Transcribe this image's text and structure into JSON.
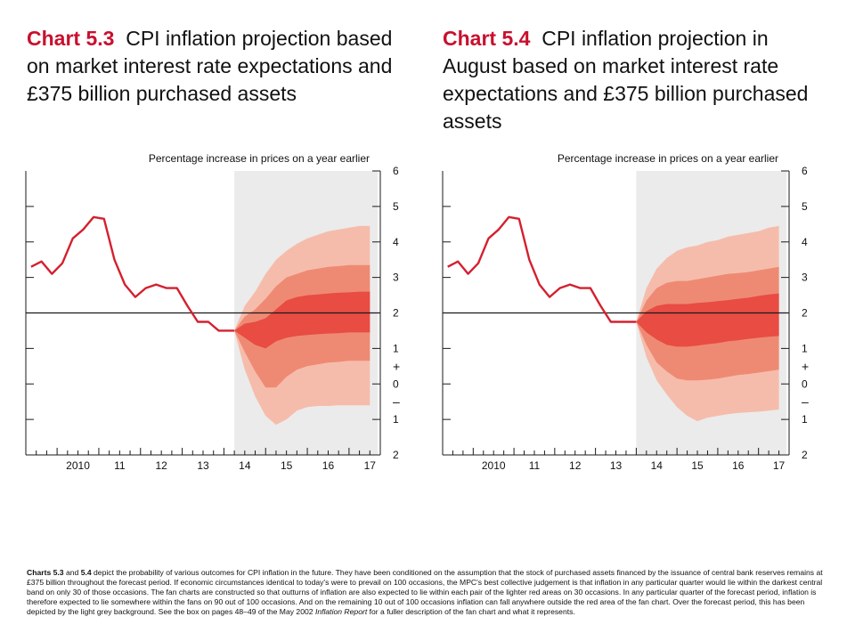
{
  "titles": {
    "left": {
      "number": "Chart 5.3",
      "text": "CPI inflation projection based on market interest rate expectations and £375 billion purchased assets"
    },
    "right": {
      "number": "Chart 5.4",
      "text": "CPI inflation projection in August based on market interest rate expectations and £375 billion purchased assets"
    }
  },
  "note": {
    "lead": "Charts 5.3",
    "and": " and ",
    "lead2": "5.4",
    "part1": " depict the probability of various outcomes for CPI inflation in the future.  They have been conditioned on the assumption that the stock of purchased assets financed by the issuance of central bank reserves remains at £375 billion throughout the forecast period.  If economic circumstances identical to today's were to prevail on 100 occasions, the MPC's best collective judgement is that inflation in any particular quarter would lie within the darkest central band on only 30 of those occasions.  The fan charts are constructed so that outturns of inflation are also expected to lie within each pair of the lighter red areas on 30 occasions.  In any particular quarter of the forecast period, inflation is therefore expected to lie somewhere within the fans on 90 out of 100 occasions.  And on the remaining 10 out of 100 occasions inflation can fall anywhere outside the red area of the fan chart.  Over the forecast period, this has been depicted by the light grey background.  See the box on pages 48–49 of the May 2002 ",
    "italic": "Inflation Report",
    "part2": " for a fuller description of the fan chart and what it represents."
  },
  "colors": {
    "history_line": "#d4202f",
    "band_outer": "#f6bcab",
    "band_middle": "#ee8a73",
    "band_inner": "#e84c43",
    "forecast_bg": "#ebebeb",
    "target_line": "#1a1a1a",
    "axis": "#1a1a1a"
  },
  "chart_data": [
    {
      "type": "area",
      "id": "chart-5-3",
      "axis_title": "Percentage increase in prices on a year earlier",
      "x_tick_labels": [
        "2010",
        "11",
        "12",
        "13",
        "14",
        "15",
        "16",
        "17"
      ],
      "x_tick_years": [
        2010,
        2011,
        2012,
        2013,
        2014,
        2015,
        2016,
        2017
      ],
      "xlim": [
        2009.25,
        2017.75
      ],
      "ylim": [
        -2,
        6
      ],
      "y_tick_labels": [
        "6",
        "5",
        "4",
        "3",
        "2",
        "1",
        "0",
        "1",
        "2"
      ],
      "y_tick_values": [
        6,
        5,
        4,
        3,
        2,
        1,
        0,
        -1,
        -2
      ],
      "sign_labels": {
        "plus": "+",
        "minus": "–"
      },
      "forecast_start": 2014.25,
      "target": 2,
      "history": {
        "x": [
          2009.375,
          2009.625,
          2009.875,
          2010.125,
          2010.375,
          2010.625,
          2010.875,
          2011.125,
          2011.375,
          2011.625,
          2011.875,
          2012.125,
          2012.375,
          2012.625,
          2012.875,
          2013.125,
          2013.375,
          2013.625,
          2013.875,
          2014.125,
          2014.25
        ],
        "y": [
          3.3,
          3.45,
          3.1,
          3.4,
          4.1,
          4.35,
          4.7,
          4.65,
          3.5,
          2.8,
          2.45,
          2.7,
          2.8,
          2.7,
          2.7,
          2.2,
          1.75,
          1.75,
          1.5,
          1.5,
          1.5
        ]
      },
      "fan": {
        "x": [
          2014.25,
          2014.5,
          2014.75,
          2015.0,
          2015.25,
          2015.5,
          2015.75,
          2016.0,
          2016.25,
          2016.5,
          2016.75,
          2017.0,
          2017.25,
          2017.5
        ],
        "outer_upper": [
          1.5,
          2.2,
          2.6,
          3.1,
          3.5,
          3.75,
          3.95,
          4.1,
          4.2,
          4.3,
          4.35,
          4.4,
          4.45,
          4.45
        ],
        "middle_upper": [
          1.5,
          1.9,
          2.1,
          2.4,
          2.75,
          3.0,
          3.1,
          3.2,
          3.25,
          3.3,
          3.32,
          3.35,
          3.35,
          3.35
        ],
        "inner_upper": [
          1.5,
          1.7,
          1.75,
          1.85,
          2.1,
          2.35,
          2.45,
          2.5,
          2.52,
          2.55,
          2.57,
          2.58,
          2.6,
          2.6
        ],
        "inner_lower": [
          1.5,
          1.3,
          1.1,
          1.0,
          1.2,
          1.3,
          1.35,
          1.38,
          1.4,
          1.42,
          1.43,
          1.45,
          1.45,
          1.45
        ],
        "middle_lower": [
          1.5,
          0.9,
          0.35,
          -0.1,
          -0.1,
          0.2,
          0.4,
          0.5,
          0.55,
          0.6,
          0.62,
          0.65,
          0.65,
          0.65
        ],
        "outer_lower": [
          1.5,
          0.4,
          -0.35,
          -0.9,
          -1.15,
          -1.0,
          -0.75,
          -0.65,
          -0.62,
          -0.62,
          -0.6,
          -0.6,
          -0.6,
          -0.6
        ]
      }
    },
    {
      "type": "area",
      "id": "chart-5-4",
      "axis_title": "Percentage increase in prices on a year earlier",
      "x_tick_labels": [
        "2010",
        "11",
        "12",
        "13",
        "14",
        "15",
        "16",
        "17"
      ],
      "x_tick_years": [
        2010,
        2011,
        2012,
        2013,
        2014,
        2015,
        2016,
        2017
      ],
      "xlim": [
        2009.25,
        2017.75
      ],
      "ylim": [
        -2,
        6
      ],
      "y_tick_labels": [
        "6",
        "5",
        "4",
        "3",
        "2",
        "1",
        "0",
        "1",
        "2"
      ],
      "y_tick_values": [
        6,
        5,
        4,
        3,
        2,
        1,
        0,
        -1,
        -2
      ],
      "sign_labels": {
        "plus": "+",
        "minus": "–"
      },
      "forecast_start": 2014.0,
      "target": 2,
      "history": {
        "x": [
          2009.375,
          2009.625,
          2009.875,
          2010.125,
          2010.375,
          2010.625,
          2010.875,
          2011.125,
          2011.375,
          2011.625,
          2011.875,
          2012.125,
          2012.375,
          2012.625,
          2012.875,
          2013.125,
          2013.375,
          2013.625,
          2013.875,
          2014.0
        ],
        "y": [
          3.3,
          3.45,
          3.1,
          3.4,
          4.1,
          4.35,
          4.7,
          4.65,
          3.5,
          2.8,
          2.45,
          2.7,
          2.8,
          2.7,
          2.7,
          2.2,
          1.75,
          1.75,
          1.75,
          1.75
        ]
      },
      "fan": {
        "x": [
          2014.0,
          2014.25,
          2014.5,
          2014.75,
          2015.0,
          2015.25,
          2015.5,
          2015.75,
          2016.0,
          2016.25,
          2016.5,
          2016.75,
          2017.0,
          2017.25,
          2017.5
        ],
        "outer_upper": [
          1.75,
          2.7,
          3.25,
          3.55,
          3.75,
          3.85,
          3.9,
          4.0,
          4.05,
          4.15,
          4.2,
          4.25,
          4.3,
          4.4,
          4.45
        ],
        "middle_upper": [
          1.75,
          2.35,
          2.7,
          2.85,
          2.9,
          2.9,
          2.95,
          3.0,
          3.05,
          3.1,
          3.12,
          3.15,
          3.2,
          3.25,
          3.3
        ],
        "inner_upper": [
          1.75,
          2.05,
          2.2,
          2.25,
          2.25,
          2.25,
          2.28,
          2.3,
          2.33,
          2.36,
          2.4,
          2.43,
          2.48,
          2.52,
          2.55
        ],
        "inner_lower": [
          1.75,
          1.45,
          1.25,
          1.1,
          1.05,
          1.05,
          1.08,
          1.12,
          1.15,
          1.2,
          1.23,
          1.27,
          1.3,
          1.33,
          1.35
        ],
        "middle_lower": [
          1.75,
          1.1,
          0.6,
          0.35,
          0.15,
          0.1,
          0.1,
          0.12,
          0.15,
          0.2,
          0.25,
          0.28,
          0.32,
          0.36,
          0.4
        ],
        "outer_lower": [
          1.75,
          0.75,
          0.1,
          -0.3,
          -0.65,
          -0.9,
          -1.05,
          -0.95,
          -0.9,
          -0.85,
          -0.82,
          -0.8,
          -0.78,
          -0.75,
          -0.72
        ]
      }
    }
  ]
}
